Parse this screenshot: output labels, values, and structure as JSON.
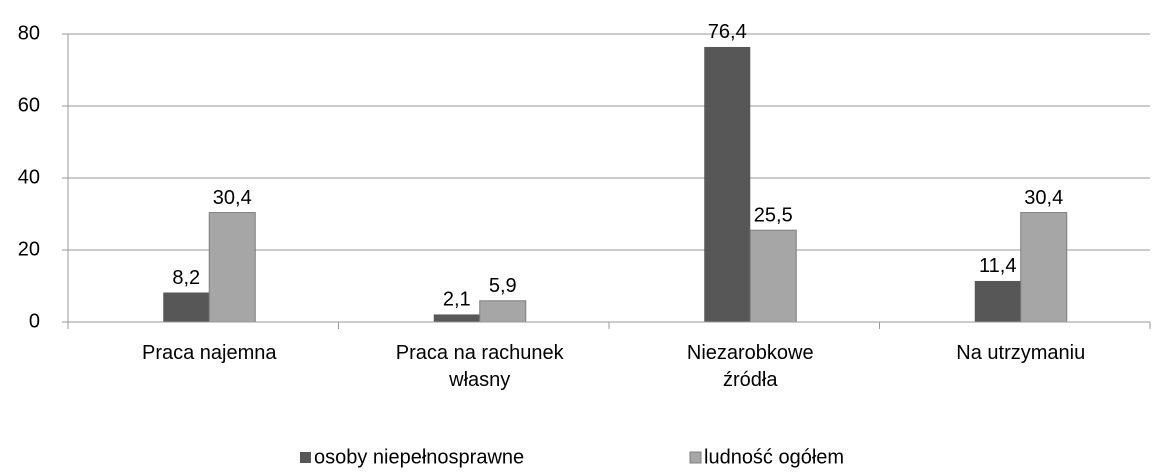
{
  "chart_data": {
    "type": "bar",
    "categories": [
      "Praca najemna",
      "Praca na rachunek własny",
      "Niezarobkowe źródła",
      "Na utrzymaniu"
    ],
    "series": [
      {
        "name": "osoby niepełnosprawne",
        "color": "#575757",
        "values": [
          8.2,
          2.1,
          76.4,
          11.4
        ],
        "value_labels": [
          "8,2",
          "2,1",
          "76,4",
          "11,4"
        ]
      },
      {
        "name": "ludność ogółem",
        "color": "#a6a6a6",
        "values": [
          30.4,
          5.9,
          25.5,
          30.4
        ],
        "value_labels": [
          "30,4",
          "5,9",
          "25,5",
          "30,4"
        ]
      }
    ],
    "ylim": [
      0,
      80
    ],
    "yticks": [
      0,
      20,
      40,
      60,
      80
    ],
    "grid": true
  }
}
